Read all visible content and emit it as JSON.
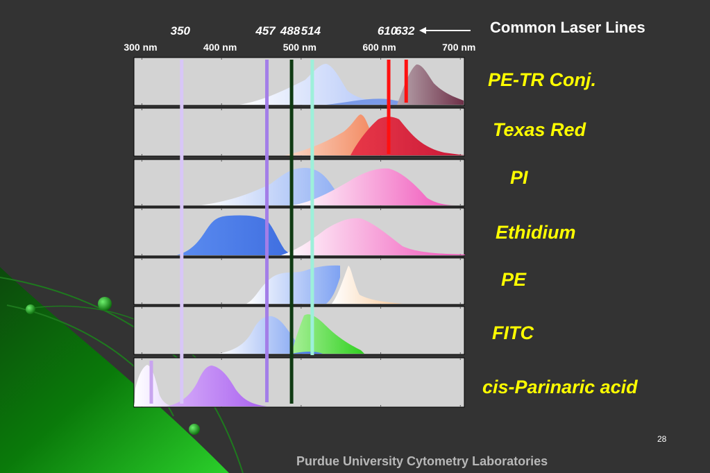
{
  "slide": {
    "legend_title": "Common Laser Lines",
    "footer": "Purdue University Cytometry Laboratories",
    "page_number": "28"
  },
  "laser_lines": [
    {
      "label": "350",
      "nm": 350,
      "color": "#d8c6f7"
    },
    {
      "label": "457",
      "nm": 457,
      "color": "#a37ee8"
    },
    {
      "label": "488",
      "nm": 488,
      "color": "#0f3a12"
    },
    {
      "label": "514",
      "nm": 514,
      "color": "#9df0da"
    },
    {
      "label": "610",
      "nm": 610,
      "color": "#ff1010"
    },
    {
      "label": "632",
      "nm": 632,
      "color": "#ff1010"
    }
  ],
  "axis_ticks": [
    {
      "label": "300 nm",
      "nm": 300
    },
    {
      "label": "400 nm",
      "nm": 400
    },
    {
      "label": "500 nm",
      "nm": 500
    },
    {
      "label": "600 nm",
      "nm": 600
    },
    {
      "label": "700 nm",
      "nm": 700
    }
  ],
  "dyes": [
    {
      "name": "PE-TR Conj.",
      "excitation_color": "#c8d4ff",
      "emission_color": "#8a5060"
    },
    {
      "name": "Texas Red",
      "excitation_color": "#f07040",
      "emission_color": "#d0203a"
    },
    {
      "name": "PI",
      "excitation_color": "#8fb0f5",
      "emission_color": "#f070c0"
    },
    {
      "name": "Ethidium",
      "excitation_color": "#4f80ea",
      "emission_color": "#f070c0"
    },
    {
      "name": "PE",
      "excitation_color": "#8fb0f5",
      "emission_color": "#ffd8a8"
    },
    {
      "name": "FITC",
      "excitation_color": "#8fb0f5",
      "emission_color": "#48d838"
    },
    {
      "name": "cis-Parinaric acid",
      "excitation_color": "#f0e8ff",
      "emission_color": "#b070f0"
    }
  ]
}
